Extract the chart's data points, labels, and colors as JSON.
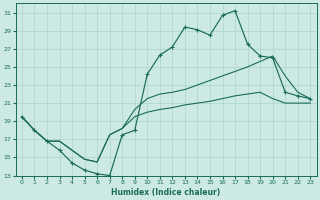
{
  "xlabel": "Humidex (Indice chaleur)",
  "bg_color": "#cce9e4",
  "grid_color": "#aad4cc",
  "line_color": "#1a6b5a",
  "xlim": [
    -0.5,
    23.5
  ],
  "ylim": [
    13,
    32
  ],
  "yticks": [
    13,
    15,
    17,
    19,
    21,
    23,
    25,
    27,
    29,
    31
  ],
  "xticks": [
    0,
    1,
    2,
    3,
    4,
    5,
    6,
    7,
    8,
    9,
    10,
    11,
    12,
    13,
    14,
    15,
    16,
    17,
    18,
    19,
    20,
    21,
    22,
    23
  ],
  "line1_x": [
    0,
    1,
    2,
    3,
    4,
    5,
    6,
    7,
    8,
    9,
    10,
    11,
    12,
    13,
    14,
    15,
    16,
    17,
    18,
    19,
    20,
    21,
    22,
    23
  ],
  "line1_y": [
    19.5,
    18.0,
    16.8,
    15.8,
    14.4,
    13.6,
    13.2,
    13.0,
    17.5,
    18.0,
    24.2,
    26.3,
    27.2,
    29.4,
    29.1,
    28.5,
    30.7,
    31.2,
    27.5,
    26.2,
    26.0,
    22.2,
    21.8,
    21.5
  ],
  "line2_x": [
    0,
    1,
    2,
    3,
    4,
    5,
    6,
    7,
    8,
    9,
    10,
    11,
    12,
    13,
    14,
    15,
    16,
    17,
    18,
    19,
    20,
    21,
    22,
    23
  ],
  "line2_y": [
    19.5,
    18.0,
    16.8,
    16.8,
    15.8,
    14.8,
    14.5,
    17.5,
    18.2,
    20.3,
    21.5,
    22.0,
    22.2,
    22.5,
    23.0,
    23.5,
    24.0,
    24.5,
    25.0,
    25.6,
    26.2,
    24.0,
    22.2,
    21.5
  ],
  "line3_x": [
    0,
    1,
    2,
    3,
    4,
    5,
    6,
    7,
    8,
    9,
    10,
    11,
    12,
    13,
    14,
    15,
    16,
    17,
    18,
    19,
    20,
    21,
    22,
    23
  ],
  "line3_y": [
    19.5,
    18.0,
    16.8,
    16.8,
    15.8,
    14.8,
    14.5,
    17.5,
    18.2,
    19.5,
    20.0,
    20.3,
    20.5,
    20.8,
    21.0,
    21.2,
    21.5,
    21.8,
    22.0,
    22.2,
    21.5,
    21.0,
    21.0,
    21.0
  ]
}
